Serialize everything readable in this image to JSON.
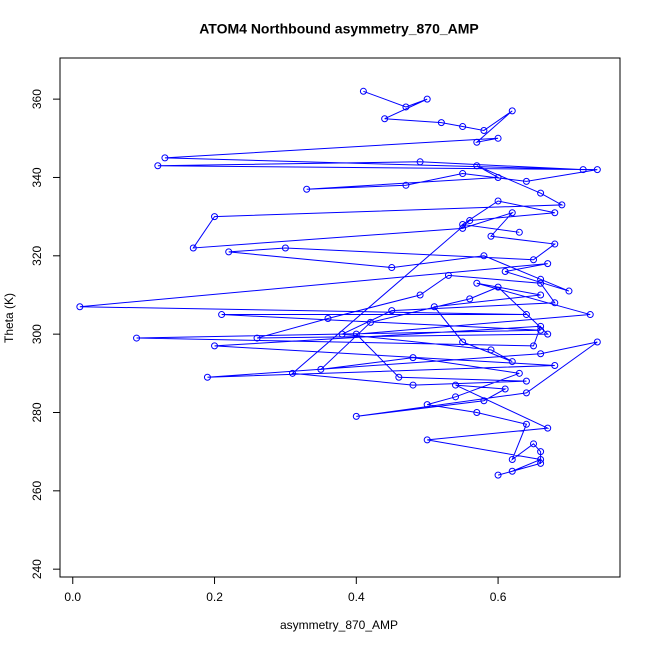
{
  "chart_data": {
    "type": "line",
    "title": "ATOM4 Northbound asymmetry_870_AMP",
    "x_label": "asymmetry_870_AMP",
    "y_label": "Theta (K)",
    "color": "#0000ff",
    "markers": true,
    "x": [
      0.41,
      0.47,
      0.5,
      0.44,
      0.52,
      0.55,
      0.58,
      0.62,
      0.57,
      0.6,
      0.13,
      0.72,
      0.49,
      0.12,
      0.74,
      0.64,
      0.55,
      0.47,
      0.33,
      0.6,
      0.57,
      0.66,
      0.69,
      0.2,
      0.17,
      0.55,
      0.62,
      0.59,
      0.68,
      0.65,
      0.3,
      0.22,
      0.45,
      0.58,
      0.66,
      0.7,
      0.61,
      0.67,
      0.01,
      0.64,
      0.21,
      0.66,
      0.09,
      0.65,
      0.66,
      0.2,
      0.68,
      0.19,
      0.66,
      0.74,
      0.64,
      0.4,
      0.58,
      0.61,
      0.54,
      0.67,
      0.5,
      0.66,
      0.62,
      0.6,
      0.66,
      0.66,
      0.65,
      0.62,
      0.64,
      0.57,
      0.5,
      0.54,
      0.63,
      0.48,
      0.35,
      0.42,
      0.56,
      0.6,
      0.67,
      0.26,
      0.36,
      0.49,
      0.53,
      0.66,
      0.68,
      0.45,
      0.38,
      0.59,
      0.62,
      0.55,
      0.51,
      0.66,
      0.57,
      0.73,
      0.4,
      0.46,
      0.64,
      0.48,
      0.31,
      0.56,
      0.68,
      0.6,
      0.55,
      0.63
    ],
    "values": [
      362,
      358,
      360,
      355,
      354,
      353,
      352,
      357,
      349,
      350,
      345,
      342,
      344,
      343,
      342,
      339,
      341,
      338,
      337,
      340,
      343,
      336,
      333,
      330,
      322,
      327,
      331,
      325,
      323,
      319,
      322,
      321,
      317,
      320,
      314,
      311,
      316,
      318,
      307,
      305,
      305,
      301,
      299,
      297,
      302,
      297,
      292,
      289,
      295,
      298,
      285,
      279,
      283,
      286,
      287,
      276,
      273,
      268,
      265,
      264,
      267,
      270,
      272,
      268,
      277,
      280,
      282,
      284,
      290,
      294,
      291,
      303,
      309,
      312,
      300,
      299,
      304,
      310,
      315,
      313,
      308,
      306,
      300,
      296,
      293,
      298,
      307,
      310,
      313,
      305,
      300,
      289,
      288,
      287,
      290,
      329,
      331,
      334,
      328,
      326
    ],
    "xlim": [
      -0.018,
      0.772
    ],
    "xticks": [
      {
        "value": 0,
        "label": "0.0"
      },
      0.2,
      0.4,
      0.6
    ],
    "ylim": [
      238,
      370.5
    ],
    "yticks": [
      240,
      260,
      280,
      300,
      320,
      340,
      360
    ]
  }
}
